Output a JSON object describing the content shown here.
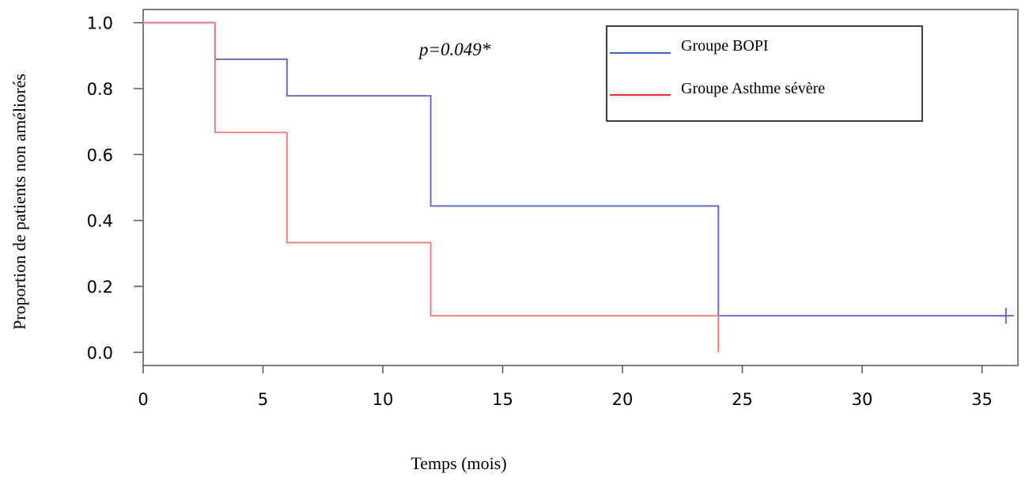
{
  "chart_data": {
    "type": "line",
    "title": "",
    "xlabel": "Temps (mois)",
    "ylabel": "Proportion de patients non  améliorés",
    "xlim": [
      0,
      36.5
    ],
    "ylim": [
      -0.04,
      1.04
    ],
    "x_ticks": [
      0,
      5,
      10,
      15,
      20,
      25,
      30,
      35
    ],
    "y_ticks": [
      0.0,
      0.2,
      0.4,
      0.6,
      0.8,
      1.0
    ],
    "x_tick_labels": [
      "0",
      "5",
      "10",
      "15",
      "20",
      "25",
      "30",
      "35"
    ],
    "y_tick_labels": [
      "0.0",
      "0.2",
      "0.4",
      "0.6",
      "0.8",
      "1.0"
    ],
    "step": true,
    "grid": false,
    "legend_position": "top-right",
    "annotation": "p=0.049*",
    "series": [
      {
        "name": "Groupe BOPI",
        "color": "#6a6fc0",
        "legend_color": "#2f6db0",
        "x": [
          0,
          3,
          6,
          12,
          24,
          36
        ],
        "y": [
          1.0,
          0.889,
          0.778,
          0.444,
          0.111,
          0.111
        ],
        "censored_x": [
          36
        ],
        "censored_y": [
          0.111
        ]
      },
      {
        "name": "Groupe Asthme sévère",
        "color": "#f08080",
        "legend_color": "#e03030",
        "x": [
          0,
          3,
          6,
          12,
          24
        ],
        "y": [
          1.0,
          0.667,
          0.333,
          0.111,
          0.0
        ]
      }
    ]
  }
}
